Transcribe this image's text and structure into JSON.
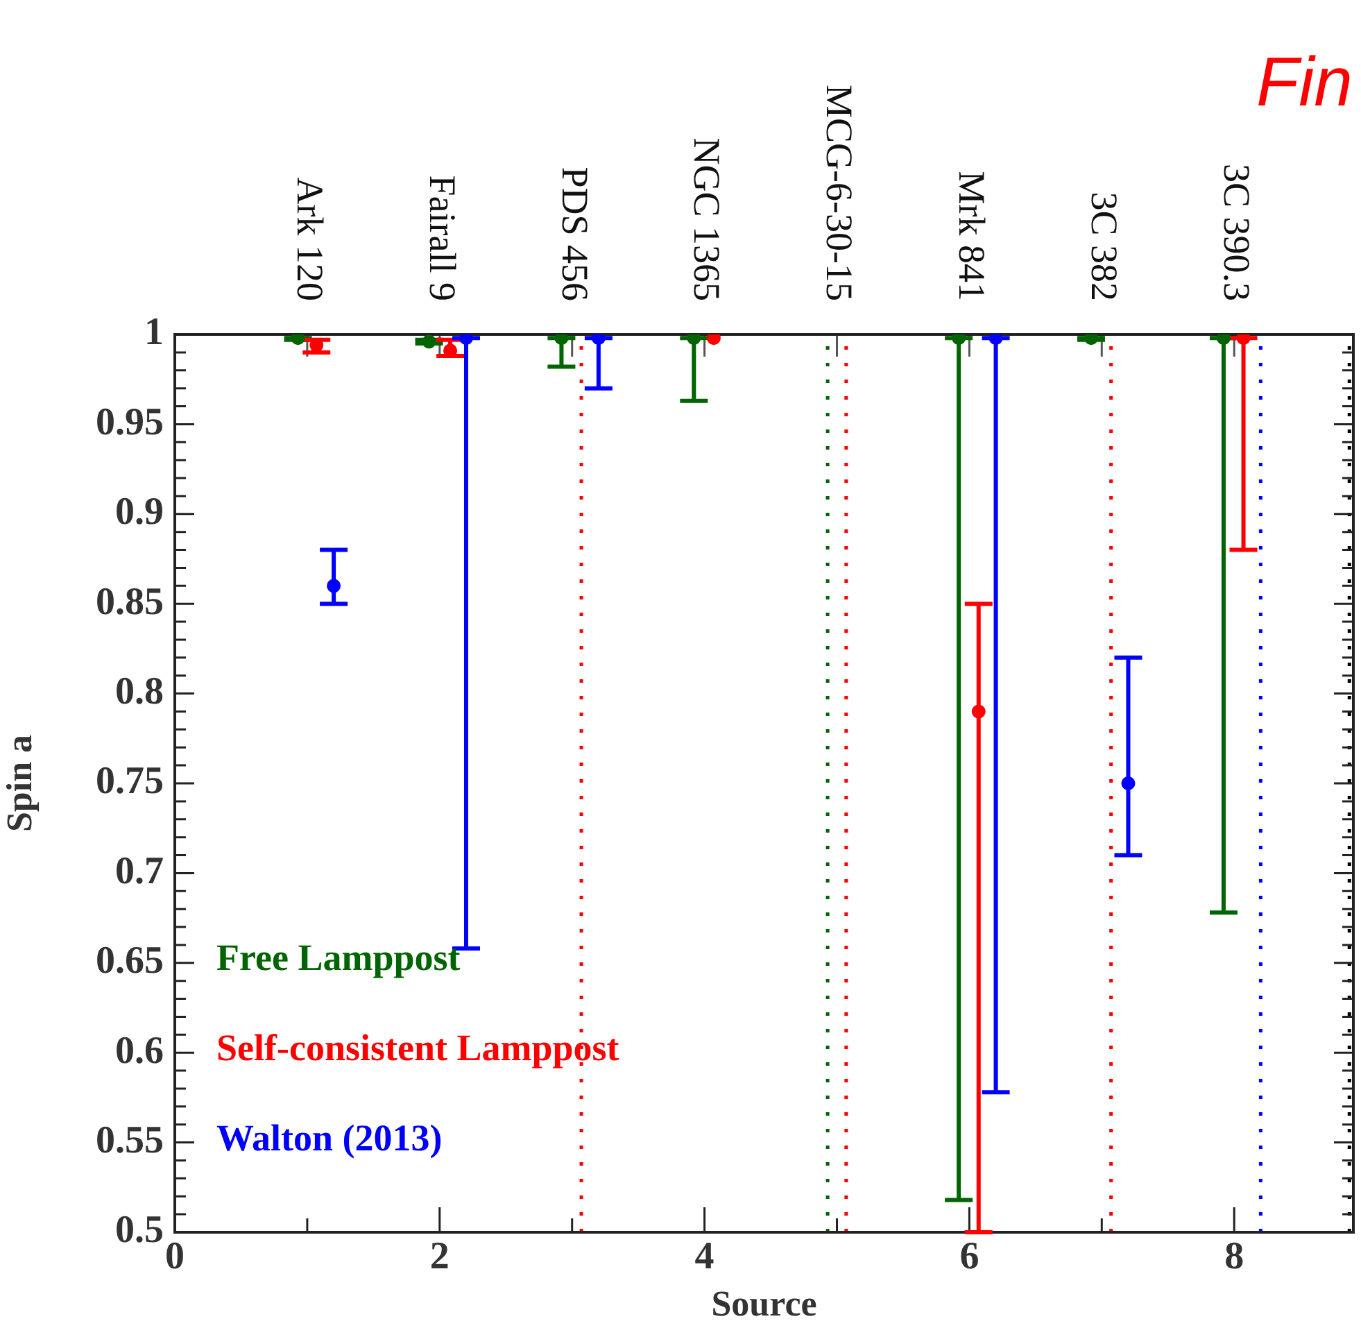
{
  "chart_data": {
    "type": "scatter",
    "xlabel": "Source",
    "ylabel": "Spin a",
    "annotations": [
      "Ark 120",
      "Fairall 9",
      "PDS 456",
      "NGC 1365",
      "MCG-6-30-15",
      "Mrk 841",
      "3C 382",
      "3C 390.3",
      "Fin"
    ],
    "xlim": [
      0,
      8.9
    ],
    "xticks": [
      0,
      {
        "value": 1,
        "label": null
      },
      2,
      {
        "value": 3,
        "label": null
      },
      4,
      {
        "value": 5,
        "label": null
      },
      6,
      {
        "value": 7,
        "label": null
      },
      8
    ],
    "ylim": [
      0.5,
      1
    ],
    "yticks": [
      0.5,
      {
        "value": 0.51,
        "label": null
      },
      {
        "value": 0.52,
        "label": null
      },
      {
        "value": 0.53,
        "label": null
      },
      {
        "value": 0.54,
        "label": null
      },
      0.55,
      {
        "value": 0.56,
        "label": null
      },
      {
        "value": 0.57,
        "label": null
      },
      {
        "value": 0.58,
        "label": null
      },
      {
        "value": 0.59,
        "label": null
      },
      0.6,
      {
        "value": 0.61,
        "label": null
      },
      {
        "value": 0.62,
        "label": null
      },
      {
        "value": 0.63,
        "label": null
      },
      {
        "value": 0.64,
        "label": null
      },
      0.65,
      {
        "value": 0.66,
        "label": null
      },
      {
        "value": 0.67,
        "label": null
      },
      {
        "value": 0.68,
        "label": null
      },
      {
        "value": 0.69,
        "label": null
      },
      0.7,
      {
        "value": 0.71,
        "label": null
      },
      {
        "value": 0.72,
        "label": null
      },
      {
        "value": 0.73,
        "label": null
      },
      {
        "value": 0.74,
        "label": null
      },
      0.75,
      {
        "value": 0.76,
        "label": null
      },
      {
        "value": 0.77,
        "label": null
      },
      {
        "value": 0.78,
        "label": null
      },
      {
        "value": 0.79,
        "label": null
      },
      0.8,
      {
        "value": 0.81,
        "label": null
      },
      {
        "value": 0.82,
        "label": null
      },
      {
        "value": 0.83,
        "label": null
      },
      {
        "value": 0.84,
        "label": null
      },
      0.85,
      {
        "value": 0.86,
        "label": null
      },
      {
        "value": 0.87,
        "label": null
      },
      {
        "value": 0.88,
        "label": null
      },
      {
        "value": 0.89,
        "label": null
      },
      0.9,
      {
        "value": 0.91,
        "label": null
      },
      {
        "value": 0.92,
        "label": null
      },
      {
        "value": 0.93,
        "label": null
      },
      {
        "value": 0.94,
        "label": null
      },
      0.95,
      {
        "value": 0.96,
        "label": null
      },
      {
        "value": 0.97,
        "label": null
      },
      {
        "value": 0.98,
        "label": null
      },
      {
        "value": 0.99,
        "label": null
      },
      1
    ],
    "grid": false,
    "legend": "bottom left",
    "marker": "circle",
    "series": [
      {
        "name": "Free Lamppost",
        "color": "#006400",
        "x": [
          0.93,
          1.92,
          2.92,
          3.92,
          5.92,
          6.92,
          7.92
        ],
        "values": [
          0.998,
          0.996,
          0.998,
          0.998,
          0.998,
          0.998,
          0.998
        ],
        "errors": [
          [
            0.997,
            0.998
          ],
          [
            0.995,
            0.997
          ],
          [
            0.982,
            0.998
          ],
          [
            0.963,
            0.998
          ],
          [
            0.518,
            0.998
          ],
          [
            0.997,
            0.998
          ],
          [
            0.678,
            0.998
          ]
        ]
      },
      {
        "name": "Self-consistent Lamppost",
        "color": "#ff0000",
        "x": [
          1.07,
          2.08,
          4.07,
          6.07,
          8.07
        ],
        "values": [
          0.994,
          0.991,
          0.998,
          0.79,
          0.998
        ],
        "errors": [
          [
            0.99,
            0.997
          ],
          [
            0.988,
            0.997
          ],
          null,
          [
            0.5,
            0.85
          ],
          [
            0.88,
            0.998
          ]
        ]
      },
      {
        "name": "Walton (2013)",
        "color": "#0000ff",
        "x": [
          1.2,
          2.2,
          3.2,
          6.2,
          7.2
        ],
        "values": [
          0.86,
          0.998,
          0.998,
          0.998,
          0.75
        ],
        "errors": [
          [
            0.85,
            0.88
          ],
          [
            0.658,
            0.998
          ],
          [
            0.97,
            0.998
          ],
          [
            0.578,
            0.998
          ],
          [
            0.71,
            0.82
          ]
        ]
      }
    ],
    "ref_lines": [
      {
        "axis": "x",
        "value": 3.07,
        "color": "#ff0000",
        "line_style": "dotted"
      },
      {
        "axis": "x",
        "value": 4.93,
        "color": "#006400",
        "line_style": "dotted"
      },
      {
        "axis": "x",
        "value": 5.07,
        "color": "#ff0000",
        "line_style": "dotted"
      },
      {
        "axis": "x",
        "value": 7.07,
        "color": "#ff0000",
        "line_style": "dotted"
      },
      {
        "axis": "x",
        "value": 8.2,
        "color": "#0000ff",
        "line_style": "dotted"
      },
      {
        "axis": "x",
        "value": 8.87,
        "color": "#000000",
        "line_style": "dotted"
      }
    ]
  }
}
